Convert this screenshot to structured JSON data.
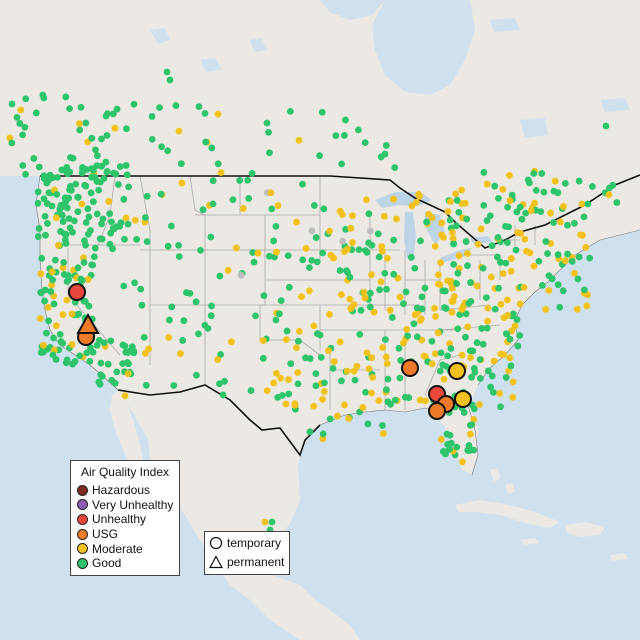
{
  "legend": {
    "title": "Air Quality Index",
    "items": [
      {
        "label": "Hazardous",
        "color": "#7e2a1e"
      },
      {
        "label": "Very Unhealthy",
        "color": "#8f5fb5"
      },
      {
        "label": "Unhealthy",
        "color": "#e8483c"
      },
      {
        "label": "USG",
        "color": "#ee7a2a"
      },
      {
        "label": "Moderate",
        "color": "#f2c21a"
      },
      {
        "label": "Good",
        "color": "#2ec46b"
      }
    ]
  },
  "shape_legend": {
    "temporary": "temporary",
    "permanent": "permanent"
  },
  "colors": {
    "ocean": "#cfe0ee",
    "land": "#ece9e4",
    "lakes": "#bcd4e6",
    "state_border": "#aaaaaa",
    "country_border": "#111111",
    "no_data": "#bdbdbd"
  }
}
